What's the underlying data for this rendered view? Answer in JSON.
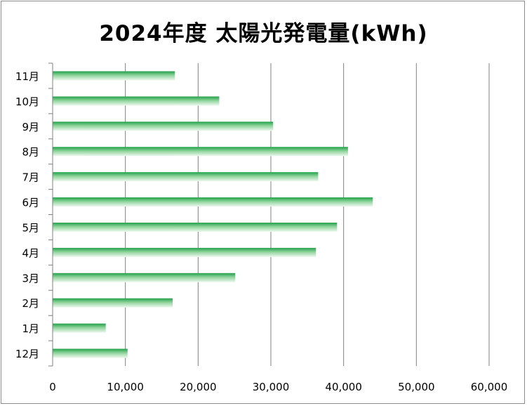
{
  "chart_data": {
    "type": "bar",
    "orientation": "horizontal",
    "title": "2024年度 太陽光発電量(kWh)",
    "xlabel": "",
    "ylabel": "",
    "categories": [
      "12月",
      "1月",
      "2月",
      "3月",
      "4月",
      "5月",
      "6月",
      "7月",
      "8月",
      "9月",
      "10月",
      "11月"
    ],
    "values": [
      10300,
      7300,
      16500,
      25100,
      36200,
      39100,
      44000,
      36500,
      40600,
      30300,
      22900,
      16800
    ],
    "xlim": [
      0,
      60000
    ],
    "xticks": [
      0,
      10000,
      20000,
      30000,
      40000,
      50000,
      60000
    ],
    "xtick_labels": [
      "0",
      "10,000",
      "20,000",
      "30,000",
      "40,000",
      "50,000",
      "60,000"
    ],
    "grid": "vertical",
    "legend": "none",
    "colors": {
      "bar_top": "#22a04a",
      "bar_mid": "#8fd49c",
      "bar_bottom": "#eef8ef",
      "grid": "#808080"
    }
  }
}
